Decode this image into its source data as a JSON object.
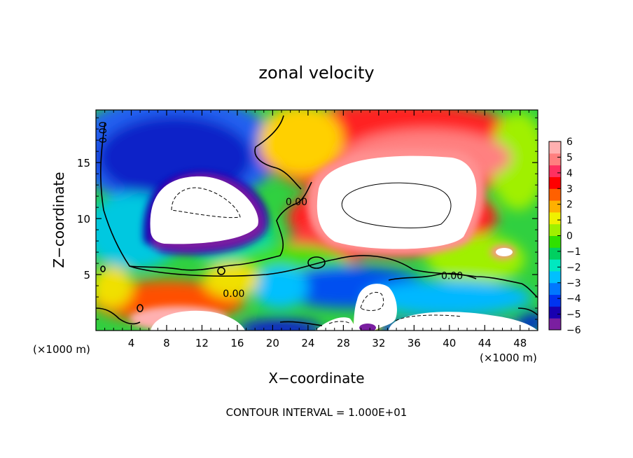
{
  "chart_data": {
    "type": "heatmap",
    "title": "zonal velocity",
    "xlabel": "X−coordinate",
    "ylabel": "Z−coordinate",
    "x_unit_label": "(×1000 m)",
    "x_unit_label_right": "(×1000 m)",
    "xlim": [
      0,
      50
    ],
    "ylim": [
      0,
      19.7
    ],
    "x_ticks": [
      4,
      8,
      12,
      16,
      20,
      24,
      28,
      32,
      36,
      40,
      44,
      48
    ],
    "y_ticks": [
      5,
      10,
      15
    ],
    "colorbar": {
      "ticks": [
        6,
        5,
        4,
        3,
        2,
        1,
        0,
        -1,
        -2,
        -3,
        -4,
        -5,
        -6
      ],
      "range": [
        -6,
        6
      ],
      "out_of_range_color": "#ffffff"
    },
    "contour_labels": [
      {
        "text": "0.00",
        "x": 1.2,
        "y": 17.7,
        "rotate": true
      },
      {
        "text": "0.00",
        "x": 22.7,
        "y": 11.2
      },
      {
        "text": "0.00",
        "x": 15.6,
        "y": 3.0
      },
      {
        "text": "0.00",
        "x": 40.3,
        "y": 4.6
      }
    ],
    "footnote": "CONTOUR INTERVAL = 1.000E+01"
  },
  "colors": {
    "palette": [
      "#7a1fa0",
      "#1800b0",
      "#0034f0",
      "#0078ff",
      "#00c0ff",
      "#00e8c0",
      "#00d060",
      "#30e000",
      "#a0f000",
      "#f0f000",
      "#ffb000",
      "#ff6000",
      "#ff0000",
      "#ff3060",
      "#ff7f7f",
      "#ffb0b0"
    ]
  }
}
